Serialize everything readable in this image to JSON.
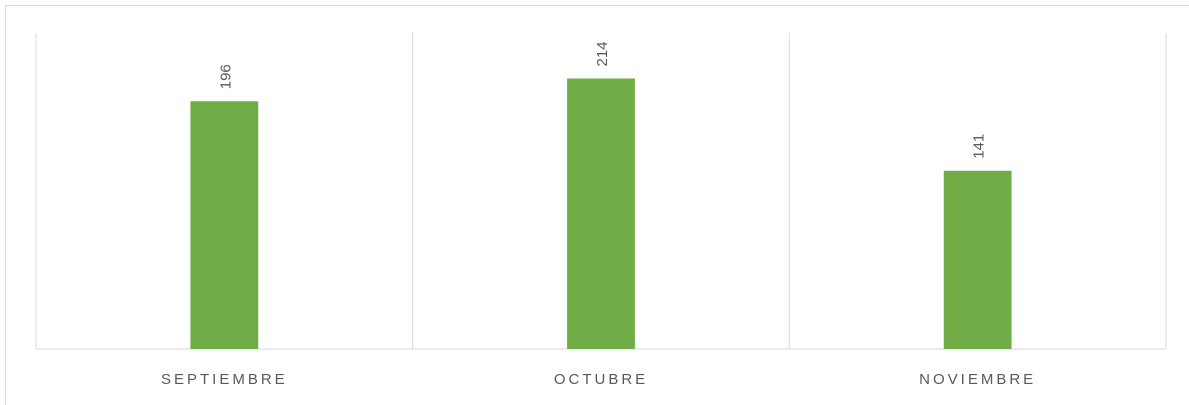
{
  "chart_data": {
    "type": "bar",
    "categories": [
      "SEPTIEMBRE",
      "OCTUBRE",
      "NOVIEMBRE"
    ],
    "values": [
      196,
      214,
      141
    ],
    "color": "#70ad47",
    "ylim": [
      0,
      250
    ]
  }
}
